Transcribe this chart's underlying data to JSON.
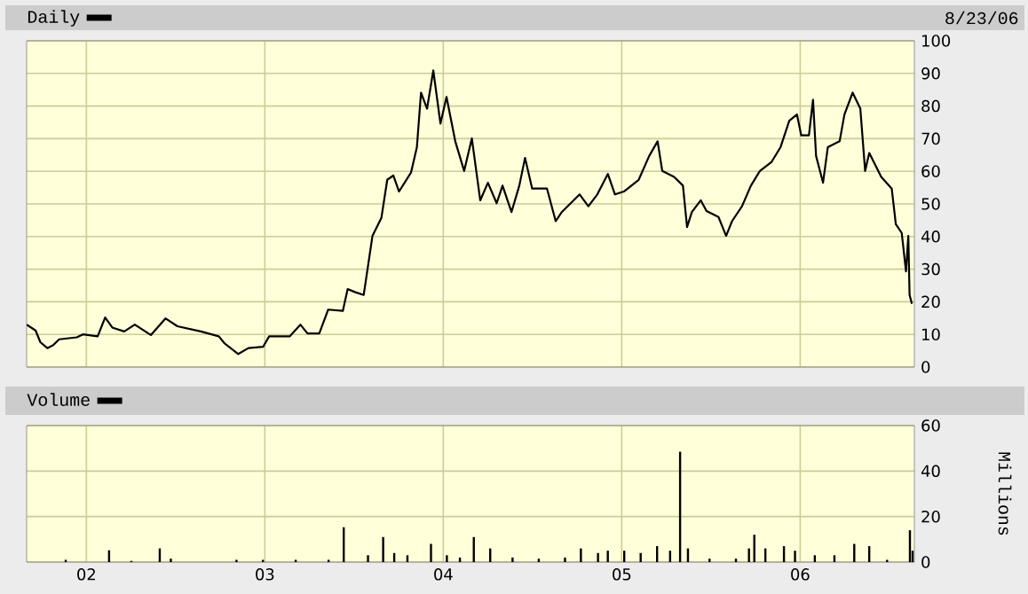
{
  "chart_data": [
    {
      "type": "line",
      "annotations": [
        "8/23/06"
      ],
      "legend": "top left",
      "grid": true,
      "tick_labels": "y",
      "xlim": [
        2001.665,
        2006.64
      ],
      "xticks": [
        {
          "value": 2002,
          "label": null
        },
        {
          "value": 2003,
          "label": null
        },
        {
          "value": 2004,
          "label": null
        },
        {
          "value": 2005,
          "label": null
        },
        {
          "value": 2006,
          "label": null
        }
      ],
      "ylim": [
        0,
        100
      ],
      "yticks": [
        0,
        10,
        20,
        30,
        40,
        50,
        60,
        70,
        80,
        90,
        100
      ],
      "series": [
        {
          "name": "Daily",
          "color": "#000000",
          "x": [
            2001.665,
            2001.715,
            2001.742,
            2001.781,
            2001.814,
            2001.847,
            2001.946,
            2001.98,
            2002.063,
            2002.105,
            2002.145,
            2002.212,
            2002.271,
            2002.361,
            2002.443,
            2002.51,
            2002.642,
            2002.742,
            2002.775,
            2002.851,
            2002.908,
            2002.99,
            2003.024,
            2003.139,
            2003.199,
            2003.239,
            2003.305,
            2003.355,
            2003.437,
            2003.464,
            2003.504,
            2003.554,
            2003.603,
            2003.653,
            2003.686,
            2003.72,
            2003.752,
            2003.819,
            2003.852,
            2003.875,
            2003.909,
            2003.944,
            2003.984,
            2004.018,
            2004.067,
            2004.117,
            2004.16,
            2004.207,
            2004.25,
            2004.299,
            2004.332,
            2004.382,
            2004.426,
            2004.458,
            2004.498,
            2004.581,
            2004.63,
            2004.664,
            2004.764,
            2004.813,
            2004.863,
            2004.922,
            2004.962,
            2005.012,
            2005.095,
            2005.154,
            2005.201,
            2005.227,
            2005.293,
            2005.343,
            2005.366,
            2005.393,
            2005.443,
            2005.475,
            2005.542,
            2005.585,
            2005.618,
            2005.674,
            2005.724,
            2005.774,
            2005.84,
            2005.89,
            2005.939,
            2005.982,
            2006.006,
            2006.049,
            2006.072,
            2006.089,
            2006.128,
            2006.155,
            2006.221,
            2006.248,
            2006.294,
            2006.337,
            2006.364,
            2006.387,
            2006.454,
            2006.513,
            2006.536,
            2006.569,
            2006.593,
            2006.606,
            2006.613,
            2006.626
          ],
          "values": [
            13.0,
            11.2,
            7.6,
            5.8,
            6.7,
            8.5,
            9.1,
            10.0,
            9.4,
            15.2,
            12.1,
            10.9,
            13.0,
            9.8,
            14.9,
            12.5,
            10.9,
            9.4,
            7.2,
            4.0,
            5.8,
            6.2,
            9.4,
            9.4,
            13.0,
            10.3,
            10.3,
            17.6,
            17.2,
            23.9,
            23.0,
            22.1,
            40.2,
            45.7,
            57.4,
            58.7,
            53.8,
            59.6,
            67.4,
            84.1,
            79.2,
            90.9,
            74.6,
            82.8,
            69.2,
            60.1,
            70.1,
            51.1,
            56.5,
            50.2,
            55.6,
            47.5,
            55.6,
            64.1,
            54.7,
            54.7,
            44.7,
            47.5,
            52.9,
            49.3,
            52.9,
            59.2,
            52.9,
            53.8,
            57.4,
            64.7,
            69.2,
            60.1,
            58.3,
            55.6,
            42.9,
            47.5,
            51.1,
            47.8,
            46.0,
            40.2,
            44.7,
            49.3,
            55.6,
            60.1,
            62.9,
            67.4,
            75.5,
            77.4,
            71.0,
            71.0,
            81.9,
            64.7,
            56.5,
            67.4,
            69.2,
            77.4,
            84.1,
            79.2,
            60.1,
            65.6,
            58.3,
            54.7,
            43.8,
            41.1,
            29.3,
            40.2,
            22.1,
            19.4
          ]
        }
      ]
    },
    {
      "type": "bar",
      "legend": "top left",
      "grid": true,
      "ylabel": "Millions",
      "xlim": [
        2001.665,
        2006.64
      ],
      "xticks": [
        {
          "value": 2002,
          "label": "02"
        },
        {
          "value": 2003,
          "label": "03"
        },
        {
          "value": 2004,
          "label": "04"
        },
        {
          "value": 2005,
          "label": "05"
        },
        {
          "value": 2006,
          "label": "06"
        }
      ],
      "ylim": [
        0,
        60
      ],
      "yticks": [
        0,
        20,
        40,
        60
      ],
      "series": [
        {
          "name": "Volume",
          "color": "#000000",
          "x": [
            2001.884,
            2002.127,
            2002.252,
            2002.411,
            2002.473,
            2002.841,
            2002.989,
            2003.173,
            2003.357,
            2003.442,
            2003.578,
            2003.663,
            2003.725,
            2003.799,
            2003.931,
            2004.02,
            2004.093,
            2004.171,
            2004.263,
            2004.388,
            2004.535,
            2004.682,
            2004.771,
            2004.867,
            2004.922,
            2005.014,
            2005.106,
            2005.198,
            2005.271,
            2005.327,
            2005.371,
            2005.492,
            2005.64,
            2005.713,
            2005.743,
            2005.805,
            2005.909,
            2005.971,
            2006.082,
            2006.192,
            2006.303,
            2006.387,
            2006.487,
            2006.615,
            2006.63
          ],
          "values": [
            1,
            5.2,
            0.5,
            6,
            1.5,
            1,
            1,
            1,
            1,
            15.3,
            3,
            11,
            4,
            3,
            8,
            3,
            2,
            11,
            6,
            2,
            1.5,
            2,
            6,
            4,
            5,
            5,
            4,
            7,
            5,
            48.5,
            6,
            1.5,
            1.5,
            6,
            12,
            6,
            7,
            5,
            3,
            3,
            8,
            7,
            1,
            14,
            5
          ]
        }
      ]
    }
  ]
}
